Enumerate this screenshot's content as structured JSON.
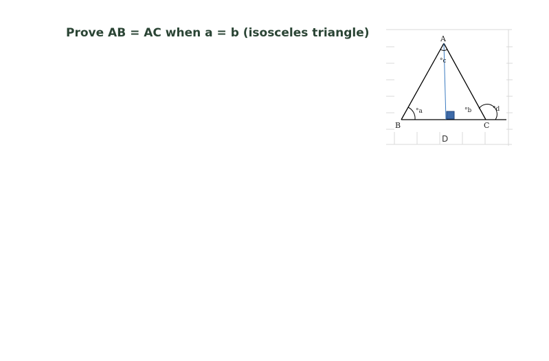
{
  "heading": "Prove AB = AC when a = b (isosceles triangle)",
  "diagram": {
    "vertices": {
      "A": "A",
      "B": "B",
      "C": "C",
      "D": "D"
    },
    "angles": {
      "a": "°a",
      "b": "°b",
      "c": "°c",
      "d": "°d"
    },
    "colors": {
      "triangle": "#000000",
      "altitude": "#3a7ac0",
      "right_angle_marker": "#3d6aa8",
      "grid": "#d8d8d8",
      "heading": "#2a4434"
    }
  }
}
